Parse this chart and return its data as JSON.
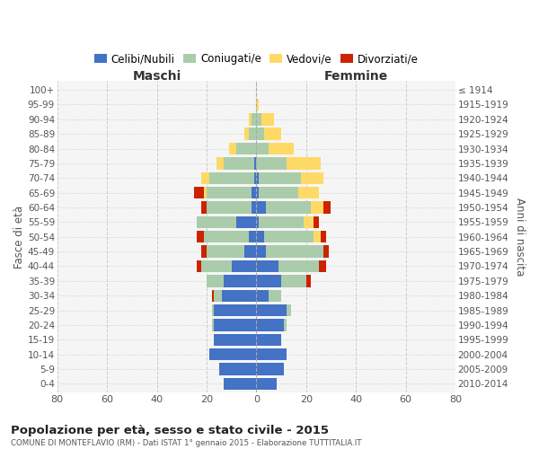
{
  "age_groups": [
    "0-4",
    "5-9",
    "10-14",
    "15-19",
    "20-24",
    "25-29",
    "30-34",
    "35-39",
    "40-44",
    "45-49",
    "50-54",
    "55-59",
    "60-64",
    "65-69",
    "70-74",
    "75-79",
    "80-84",
    "85-89",
    "90-94",
    "95-99",
    "100+"
  ],
  "birth_years": [
    "2010-2014",
    "2005-2009",
    "2000-2004",
    "1995-1999",
    "1990-1994",
    "1985-1989",
    "1980-1984",
    "1975-1979",
    "1970-1974",
    "1965-1969",
    "1960-1964",
    "1955-1959",
    "1950-1954",
    "1945-1949",
    "1940-1944",
    "1935-1939",
    "1930-1934",
    "1925-1929",
    "1920-1924",
    "1915-1919",
    "≤ 1914"
  ],
  "maschi": {
    "celibi": [
      13,
      15,
      19,
      17,
      17,
      17,
      14,
      13,
      10,
      5,
      3,
      8,
      2,
      2,
      1,
      1,
      0,
      0,
      0,
      0,
      0
    ],
    "coniugati": [
      0,
      0,
      0,
      0,
      1,
      1,
      3,
      7,
      12,
      15,
      18,
      16,
      18,
      18,
      18,
      12,
      8,
      3,
      2,
      0,
      0
    ],
    "vedovi": [
      0,
      0,
      0,
      0,
      0,
      0,
      0,
      0,
      0,
      0,
      0,
      0,
      0,
      1,
      3,
      3,
      3,
      2,
      1,
      0,
      0
    ],
    "divorziati": [
      0,
      0,
      0,
      0,
      0,
      0,
      1,
      0,
      2,
      2,
      3,
      0,
      2,
      4,
      0,
      0,
      0,
      0,
      0,
      0,
      0
    ]
  },
  "femmine": {
    "nubili": [
      8,
      11,
      12,
      10,
      11,
      12,
      5,
      10,
      9,
      4,
      3,
      1,
      4,
      1,
      1,
      0,
      0,
      0,
      0,
      0,
      0
    ],
    "coniugate": [
      0,
      0,
      0,
      0,
      1,
      2,
      5,
      10,
      16,
      23,
      20,
      18,
      18,
      16,
      17,
      12,
      5,
      3,
      2,
      0,
      0
    ],
    "vedove": [
      0,
      0,
      0,
      0,
      0,
      0,
      0,
      0,
      0,
      0,
      3,
      4,
      5,
      8,
      9,
      14,
      10,
      7,
      5,
      1,
      0
    ],
    "divorziate": [
      0,
      0,
      0,
      0,
      0,
      0,
      0,
      2,
      3,
      2,
      2,
      2,
      3,
      0,
      0,
      0,
      0,
      0,
      0,
      0,
      0
    ]
  },
  "colors": {
    "celibi": "#4472C4",
    "coniugati": "#AACCAA",
    "vedovi": "#FFD966",
    "divorziati": "#CC2200"
  },
  "xlim": 80,
  "title": "Popolazione per età, sesso e stato civile - 2015",
  "subtitle": "COMUNE DI MONTEFLAVIO (RM) - Dati ISTAT 1° gennaio 2015 - Elaborazione TUTTITALIA.IT",
  "ylabel_left": "Fasce di età",
  "ylabel_right": "Anni di nascita",
  "xlabel_left": "Maschi",
  "xlabel_right": "Femmine",
  "legend_labels": [
    "Celibi/Nubili",
    "Coniugati/e",
    "Vedovi/e",
    "Divorziati/e"
  ],
  "background_color": "#f5f5f5"
}
